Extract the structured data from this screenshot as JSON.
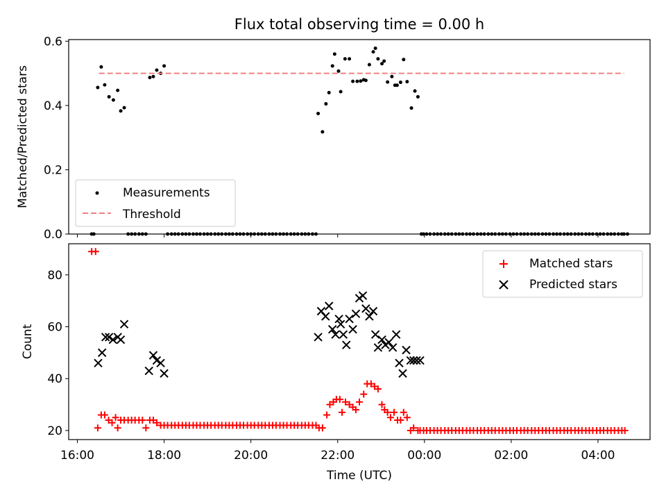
{
  "chart_data": [
    {
      "type": "scatter",
      "title": "Flux total observing time = 0.00 h",
      "xlabel": "",
      "ylabel": "Matched/Predicted stars",
      "xlim": [
        15.8,
        29.2
      ],
      "ylim": [
        0,
        0.605
      ],
      "yticks": [
        0.0,
        0.2,
        0.4,
        0.6
      ],
      "ytick_labels": [
        "0.0",
        "0.2",
        "0.4",
        "0.6"
      ],
      "xticks": [
        16,
        18,
        20,
        22,
        24,
        26,
        28
      ],
      "legend": "lower-left",
      "grid": false,
      "series": [
        {
          "name": "Measurements",
          "marker": "dot",
          "color": "#000000",
          "x": [
            16.33,
            16.38,
            16.47,
            16.55,
            16.63,
            16.73,
            16.83,
            16.93,
            17.0,
            17.08,
            17.17,
            17.25,
            17.33,
            17.42,
            17.5,
            17.58,
            17.67,
            17.75,
            17.83,
            17.92,
            18.0,
            18.08,
            18.17,
            18.25,
            18.33,
            18.42,
            18.5,
            18.58,
            18.67,
            18.75,
            18.83,
            18.92,
            19.0,
            19.08,
            19.17,
            19.25,
            19.33,
            19.42,
            19.5,
            19.58,
            19.67,
            19.75,
            19.83,
            19.92,
            20.0,
            20.08,
            20.17,
            20.25,
            20.33,
            20.42,
            20.5,
            20.58,
            20.67,
            20.75,
            20.83,
            20.92,
            21.0,
            21.08,
            21.17,
            21.25,
            21.33,
            21.42,
            21.5,
            21.55,
            21.65,
            21.73,
            21.8,
            21.88,
            21.93,
            22.02,
            22.07,
            22.17,
            22.27,
            22.35,
            22.45,
            22.53,
            22.6,
            22.65,
            22.73,
            22.82,
            22.87,
            22.93,
            23.02,
            23.07,
            23.15,
            23.25,
            23.32,
            23.37,
            23.45,
            23.52,
            23.6,
            23.7,
            23.78,
            23.85,
            23.93,
            23.98,
            24.05,
            24.13,
            24.22,
            24.3,
            24.38,
            24.47,
            24.55,
            24.63,
            24.72,
            24.8,
            24.88,
            24.97,
            25.05,
            25.13,
            25.22,
            25.3,
            25.38,
            25.47,
            25.55,
            25.63,
            25.72,
            25.8,
            25.88,
            25.97,
            26.05,
            26.13,
            26.22,
            26.3,
            26.38,
            26.47,
            26.55,
            26.63,
            26.72,
            26.8,
            26.88,
            26.97,
            27.05,
            27.13,
            27.22,
            27.3,
            27.38,
            27.47,
            27.55,
            27.63,
            27.72,
            27.8,
            27.88,
            27.97,
            28.05,
            28.13,
            28.22,
            28.3,
            28.38,
            28.47,
            28.55,
            28.6,
            28.68
          ],
          "y": [
            0.0,
            0.0,
            0.456,
            0.52,
            0.464,
            0.427,
            0.417,
            0.447,
            0.383,
            0.393,
            0.0,
            0.0,
            0.0,
            0.0,
            0.0,
            0.0,
            0.487,
            0.49,
            0.51,
            0.5,
            0.523,
            0.0,
            0.0,
            0.0,
            0.0,
            0.0,
            0.0,
            0.0,
            0.0,
            0.0,
            0.0,
            0.0,
            0.0,
            0.0,
            0.0,
            0.0,
            0.0,
            0.0,
            0.0,
            0.0,
            0.0,
            0.0,
            0.0,
            0.0,
            0.0,
            0.0,
            0.0,
            0.0,
            0.0,
            0.0,
            0.0,
            0.0,
            0.0,
            0.0,
            0.0,
            0.0,
            0.0,
            0.0,
            0.0,
            0.0,
            0.0,
            0.0,
            0.0,
            0.375,
            0.318,
            0.405,
            0.44,
            0.523,
            0.56,
            0.507,
            0.443,
            0.545,
            0.545,
            0.475,
            0.475,
            0.476,
            0.48,
            0.478,
            0.527,
            0.567,
            0.578,
            0.545,
            0.53,
            0.538,
            0.473,
            0.49,
            0.463,
            0.463,
            0.472,
            0.543,
            0.474,
            0.392,
            0.445,
            0.427,
            0.0,
            0.0,
            0.0,
            0.0,
            0.0,
            0.0,
            0.0,
            0.0,
            0.0,
            0.0,
            0.0,
            0.0,
            0.0,
            0.0,
            0.0,
            0.0,
            0.0,
            0.0,
            0.0,
            0.0,
            0.0,
            0.0,
            0.0,
            0.0,
            0.0,
            0.0,
            0.0,
            0.0,
            0.0,
            0.0,
            0.0,
            0.0,
            0.0,
            0.0,
            0.0,
            0.0,
            0.0,
            0.0,
            0.0,
            0.0,
            0.0,
            0.0,
            0.0,
            0.0,
            0.0,
            0.0,
            0.0,
            0.0,
            0.0,
            0.0,
            0.0,
            0.0,
            0.0,
            0.0,
            0.0,
            0.0,
            0.0,
            0.0,
            0.0
          ]
        },
        {
          "name": "Threshold",
          "marker": "dashed-line",
          "color": "#f08080",
          "x": [
            16.5,
            28.6
          ],
          "y": [
            0.5,
            0.5
          ]
        }
      ]
    },
    {
      "type": "scatter",
      "title": "",
      "xlabel": "Time (UTC)",
      "ylabel": "Count",
      "xlim": [
        15.8,
        29.2
      ],
      "ylim": [
        16.5,
        92
      ],
      "yticks": [
        20,
        40,
        60,
        80
      ],
      "ytick_labels": [
        "20",
        "40",
        "60",
        "80"
      ],
      "xticks": [
        16,
        18,
        20,
        22,
        24,
        26,
        28
      ],
      "xtick_labels": [
        "16:00",
        "18:00",
        "20:00",
        "22:00",
        "00:00",
        "02:00",
        "04:00"
      ],
      "legend": "top-right",
      "grid": false,
      "series": [
        {
          "name": "Matched stars",
          "marker": "plus",
          "color": "#ff0000",
          "x": [
            16.33,
            16.42,
            16.47,
            16.55,
            16.63,
            16.72,
            16.8,
            16.88,
            16.93,
            17.0,
            17.08,
            17.17,
            17.25,
            17.33,
            17.42,
            17.5,
            17.58,
            17.67,
            17.75,
            17.83,
            17.92,
            18.0,
            18.08,
            18.17,
            18.25,
            18.33,
            18.42,
            18.5,
            18.58,
            18.67,
            18.75,
            18.83,
            18.92,
            19.0,
            19.08,
            19.17,
            19.25,
            19.33,
            19.42,
            19.5,
            19.58,
            19.67,
            19.75,
            19.83,
            19.92,
            20.0,
            20.08,
            20.17,
            20.25,
            20.33,
            20.42,
            20.5,
            20.58,
            20.67,
            20.75,
            20.83,
            20.92,
            21.0,
            21.08,
            21.17,
            21.25,
            21.33,
            21.42,
            21.5,
            21.57,
            21.65,
            21.75,
            21.82,
            21.9,
            21.97,
            22.05,
            22.1,
            22.18,
            22.27,
            22.35,
            22.42,
            22.5,
            22.6,
            22.68,
            22.77,
            22.85,
            22.93,
            23.02,
            23.08,
            23.15,
            23.22,
            23.3,
            23.38,
            23.45,
            23.52,
            23.6,
            23.68,
            23.75,
            23.85,
            23.9,
            23.98,
            24.05,
            24.13,
            24.22,
            24.3,
            24.38,
            24.47,
            24.55,
            24.63,
            24.72,
            24.8,
            24.88,
            24.97,
            25.05,
            25.13,
            25.22,
            25.3,
            25.38,
            25.47,
            25.55,
            25.63,
            25.72,
            25.8,
            25.88,
            25.97,
            26.05,
            26.13,
            26.22,
            26.3,
            26.38,
            26.47,
            26.55,
            26.63,
            26.72,
            26.8,
            26.88,
            26.97,
            27.05,
            27.13,
            27.22,
            27.3,
            27.38,
            27.47,
            27.55,
            27.63,
            27.72,
            27.8,
            27.88,
            27.97,
            28.05,
            28.13,
            28.22,
            28.3,
            28.38,
            28.47,
            28.55,
            28.62
          ],
          "y": [
            89,
            89,
            21,
            26,
            26,
            24,
            23,
            25,
            21,
            24,
            24,
            24,
            24,
            24,
            24,
            24,
            21,
            24,
            24,
            23,
            22,
            22,
            22,
            22,
            22,
            22,
            22,
            22,
            22,
            22,
            22,
            22,
            22,
            22,
            22,
            22,
            22,
            22,
            22,
            22,
            22,
            22,
            22,
            22,
            22,
            22,
            22,
            22,
            22,
            22,
            22,
            22,
            22,
            22,
            22,
            22,
            22,
            22,
            22,
            22,
            22,
            22,
            22,
            22,
            21,
            21,
            26,
            30,
            31,
            32,
            32,
            27,
            31,
            30,
            29,
            28,
            31,
            34,
            38,
            38,
            37,
            36,
            30,
            28,
            27,
            25,
            27,
            24,
            24,
            27,
            25,
            20,
            21,
            20,
            20,
            20,
            20,
            20,
            20,
            20,
            20,
            20,
            20,
            20,
            20,
            20,
            20,
            20,
            20,
            20,
            20,
            20,
            20,
            20,
            20,
            20,
            20,
            20,
            20,
            20,
            20,
            20,
            20,
            20,
            20,
            20,
            20,
            20,
            20,
            20,
            20,
            20,
            20,
            20,
            20,
            20,
            20,
            20,
            20,
            20,
            20,
            20,
            20,
            20,
            20,
            20,
            20,
            20,
            20,
            20,
            20,
            20
          ]
        },
        {
          "name": "Predicted stars",
          "marker": "x",
          "color": "#000000",
          "x": [
            16.48,
            16.57,
            16.65,
            16.73,
            16.82,
            16.93,
            17.0,
            17.08,
            17.65,
            17.75,
            17.83,
            17.92,
            18.0,
            21.55,
            21.62,
            21.72,
            21.8,
            21.88,
            21.95,
            22.03,
            22.07,
            22.13,
            22.2,
            22.27,
            22.35,
            22.42,
            22.5,
            22.58,
            22.65,
            22.73,
            22.82,
            22.87,
            22.93,
            23.02,
            23.1,
            23.18,
            23.27,
            23.35,
            23.42,
            23.5,
            23.58,
            23.68,
            23.75,
            23.82,
            23.9
          ],
          "y": [
            46,
            50,
            56,
            56,
            55,
            56,
            55,
            61,
            43,
            49,
            47,
            46,
            42,
            56,
            66,
            64,
            68,
            59,
            57,
            63,
            61,
            57,
            53,
            63,
            59,
            65,
            71,
            72,
            67,
            64,
            66,
            57,
            52,
            55,
            53,
            54,
            52,
            57,
            46,
            42,
            51,
            47,
            47,
            47,
            47
          ]
        }
      ]
    }
  ]
}
